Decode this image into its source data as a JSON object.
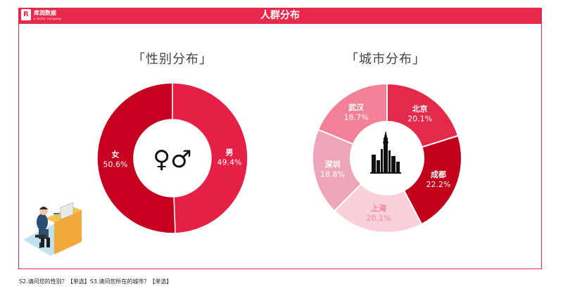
{
  "header": {
    "brand_mark": "R",
    "brand_name": "库润数据",
    "brand_sub": "a Sedar company",
    "title": "人群分布"
  },
  "colors": {
    "accent": "#e8294b",
    "frame": "#e8294b"
  },
  "chart_data": [
    {
      "type": "pie",
      "title": "「性别分布」",
      "donut": true,
      "center_icon": "gender-symbols-icon",
      "center_text": "♀♂",
      "slices": [
        {
          "label": "男",
          "value": 49.4,
          "display": "49.4%",
          "color": "#e51f45"
        },
        {
          "label": "女",
          "value": 50.6,
          "display": "50.6%",
          "color": "#c8001f"
        }
      ]
    },
    {
      "type": "pie",
      "title": "「城市分布」",
      "donut": true,
      "center_icon": "city-skyline-icon",
      "slices": [
        {
          "label": "北京",
          "value": 20.1,
          "display": "20.1%",
          "color": "#e5294b"
        },
        {
          "label": "成都",
          "value": 22.2,
          "display": "22.2%",
          "color": "#c3001c"
        },
        {
          "label": "上海",
          "value": 20.1,
          "display": "20.1%",
          "color": "#f9d0da"
        },
        {
          "label": "深圳",
          "value": 18.8,
          "display": "18.8%",
          "color": "#eca6b7"
        },
        {
          "label": "武汉",
          "value": 18.7,
          "display": "18.7%",
          "color": "#f28198"
        }
      ]
    }
  ],
  "footer": {
    "note": "S2.请问您的性别？【单选】S3.请问您所在的城市？【单选】"
  }
}
